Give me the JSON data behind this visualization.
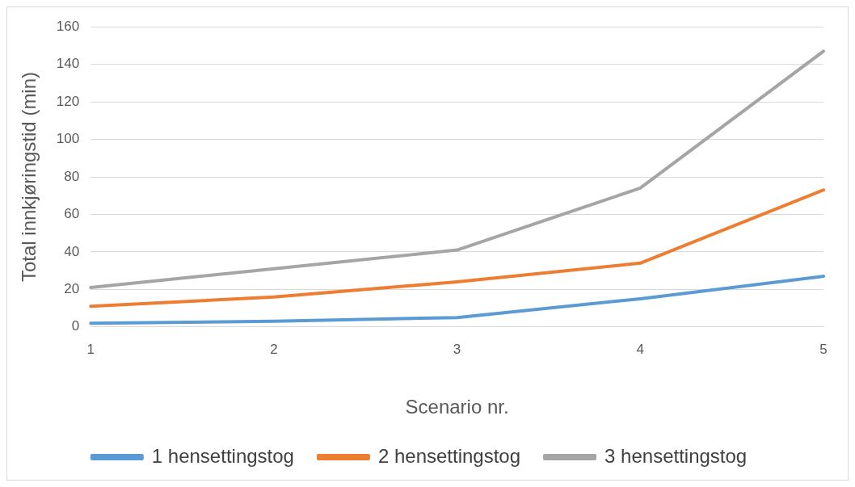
{
  "chart_data": {
    "type": "line",
    "xlabel": "Scenario nr.",
    "ylabel": "Total innkjøringstid (min)",
    "categories": [
      "1",
      "2",
      "3",
      "4",
      "5"
    ],
    "series": [
      {
        "name": "1 hensettingstog",
        "color": "#5b9bd5",
        "values": [
          2,
          3,
          5,
          15,
          27
        ]
      },
      {
        "name": "2 hensettingstog",
        "color": "#ed7d31",
        "values": [
          11,
          16,
          24,
          34,
          73
        ]
      },
      {
        "name": "3 hensettingstog",
        "color": "#a5a5a5",
        "values": [
          21,
          31,
          41,
          74,
          147
        ]
      }
    ],
    "ylim": [
      0,
      160
    ],
    "yticks": [
      0,
      20,
      40,
      60,
      80,
      100,
      120,
      140,
      160
    ],
    "grid": "y",
    "legend": "bottom",
    "marker": "none",
    "line_style": "solid"
  }
}
